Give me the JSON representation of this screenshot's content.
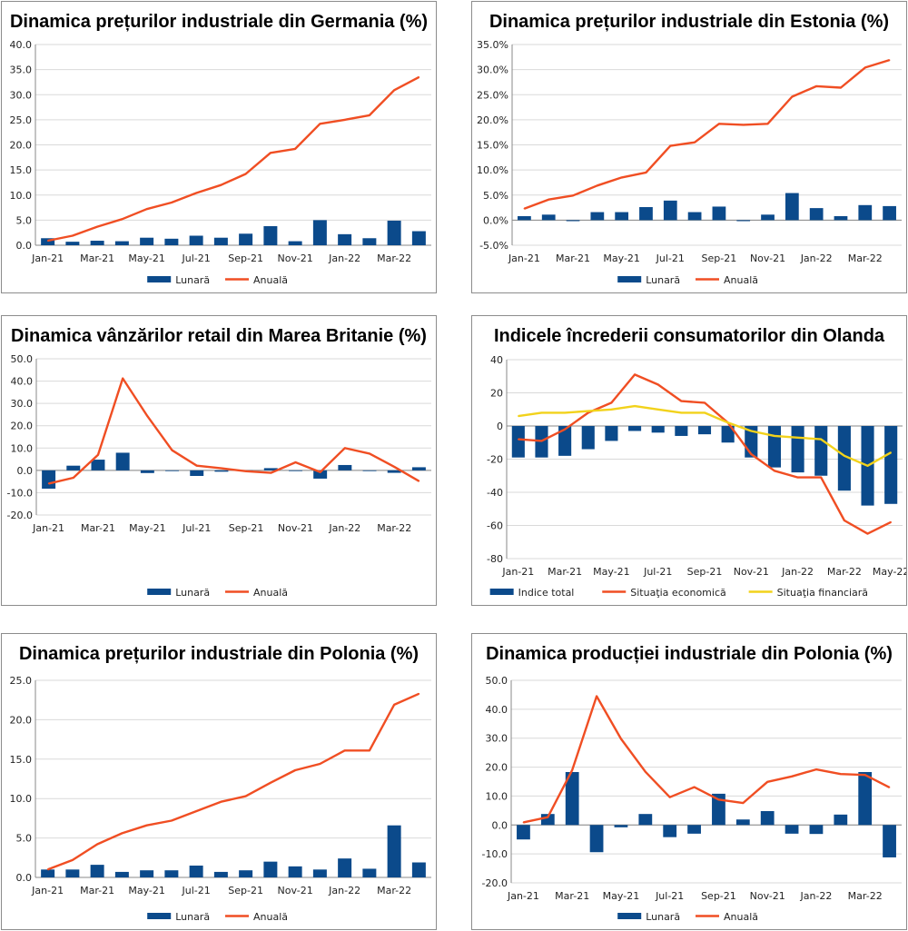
{
  "colors": {
    "bar": "#0b4a8b",
    "line": "#f04e23",
    "line2": "#f2d21b",
    "grid": "#d9d9d9",
    "axis": "#888888"
  },
  "chart_data": [
    {
      "id": "de-ppi",
      "type": "bar+line",
      "title": "Dinamica prețurilor industriale din Germania (%)",
      "x": [
        "Jan-21",
        "Feb-21",
        "Mar-21",
        "Apr-21",
        "May-21",
        "Jun-21",
        "Jul-21",
        "Aug-21",
        "Sep-21",
        "Oct-21",
        "Nov-21",
        "Dec-21",
        "Jan-22",
        "Feb-22",
        "Mar-22",
        "Apr-22"
      ],
      "x_tick_labels": [
        "Jan-21",
        "Mar-21",
        "May-21",
        "Jul-21",
        "Sep-21",
        "Nov-21",
        "Jan-22",
        "Mar-22"
      ],
      "y_ticks": [
        "0.0",
        "5.0",
        "10.0",
        "15.0",
        "20.0",
        "25.0",
        "30.0",
        "35.0",
        "40.0"
      ],
      "ylim": [
        0,
        40
      ],
      "series": [
        {
          "name": "Lunară",
          "kind": "bar",
          "values": [
            1.4,
            0.7,
            0.9,
            0.8,
            1.5,
            1.3,
            1.9,
            1.5,
            2.3,
            3.8,
            0.8,
            5.0,
            2.2,
            1.4,
            4.9,
            2.8
          ]
        },
        {
          "name": "Anuală",
          "kind": "line",
          "values": [
            0.9,
            1.9,
            3.7,
            5.2,
            7.2,
            8.5,
            10.4,
            12.0,
            14.2,
            18.4,
            19.2,
            24.2,
            25.0,
            25.9,
            30.9,
            33.5
          ]
        }
      ],
      "legend": [
        "Lunară",
        "Anuală"
      ]
    },
    {
      "id": "ee-ppi",
      "type": "bar+line",
      "title": "Dinamica prețurilor industriale din Estonia (%)",
      "x": [
        "Jan-21",
        "Feb-21",
        "Mar-21",
        "Apr-21",
        "May-21",
        "Jun-21",
        "Jul-21",
        "Aug-21",
        "Sep-21",
        "Oct-21",
        "Nov-21",
        "Dec-21",
        "Jan-22",
        "Feb-22",
        "Mar-22",
        "Apr-22"
      ],
      "x_tick_labels": [
        "Jan-21",
        "Mar-21",
        "May-21",
        "Jul-21",
        "Sep-21",
        "Nov-21",
        "Jan-22",
        "Mar-22"
      ],
      "y_ticks": [
        "-5.0%",
        "0.0%",
        "5.0%",
        "10.0%",
        "15.0%",
        "20.0%",
        "25.0%",
        "30.0%",
        "35.0%"
      ],
      "ylim": [
        -5,
        35
      ],
      "series": [
        {
          "name": "Lunară",
          "kind": "bar",
          "values": [
            0.8,
            1.1,
            -0.2,
            1.6,
            1.6,
            2.6,
            3.9,
            1.6,
            2.7,
            -0.2,
            1.1,
            5.4,
            2.4,
            0.8,
            3.0,
            2.8
          ]
        },
        {
          "name": "Anuală",
          "kind": "line",
          "values": [
            2.3,
            4.1,
            4.9,
            6.9,
            8.5,
            9.5,
            14.8,
            15.5,
            19.2,
            19.0,
            19.2,
            24.6,
            26.7,
            26.4,
            30.4,
            31.9
          ]
        }
      ],
      "legend": [
        "Lunară",
        "Anuală"
      ]
    },
    {
      "id": "uk-retail",
      "type": "bar+line",
      "title": "Dinamica vânzărilor retail din Marea Britanie (%)",
      "x": [
        "Jan-21",
        "Feb-21",
        "Mar-21",
        "Apr-21",
        "May-21",
        "Jun-21",
        "Jul-21",
        "Aug-21",
        "Sep-21",
        "Oct-21",
        "Nov-21",
        "Dec-21",
        "Jan-22",
        "Feb-22",
        "Mar-22",
        "Apr-22"
      ],
      "x_tick_labels": [
        "Jan-21",
        "Mar-21",
        "May-21",
        "Jul-21",
        "Sep-21",
        "Nov-21",
        "Jan-22",
        "Mar-22"
      ],
      "y_ticks": [
        "-20.0",
        "-10.0",
        "0.0",
        "10.0",
        "20.0",
        "30.0",
        "40.0",
        "50.0"
      ],
      "ylim": [
        -20,
        50
      ],
      "series": [
        {
          "name": "Lunară",
          "kind": "bar",
          "values": [
            -8.2,
            2.1,
            4.8,
            7.9,
            -1.2,
            -0.2,
            -2.5,
            -0.6,
            -0.4,
            1.0,
            -0.2,
            -3.7,
            2.4,
            -0.3,
            -1.1,
            1.4
          ]
        },
        {
          "name": "Anuală",
          "kind": "line",
          "values": [
            -5.9,
            -3.3,
            7.0,
            41.2,
            24.3,
            9.0,
            2.1,
            0.9,
            -0.4,
            -1.1,
            3.6,
            -0.8,
            10.0,
            7.5,
            1.6,
            -4.8
          ]
        }
      ],
      "legend": [
        "Lunară",
        "Anuală"
      ]
    },
    {
      "id": "nl-confidence",
      "type": "bar+line",
      "title": "Indicele încrederii consumatorilor din Olanda",
      "x": [
        "Jan-21",
        "Feb-21",
        "Mar-21",
        "Apr-21",
        "May-21",
        "Jun-21",
        "Jul-21",
        "Aug-21",
        "Sep-21",
        "Oct-21",
        "Nov-21",
        "Dec-21",
        "Jan-22",
        "Feb-22",
        "Mar-22",
        "Apr-22",
        "May-22"
      ],
      "x_tick_labels": [
        "Jan-21",
        "Mar-21",
        "May-21",
        "Jul-21",
        "Sep-21",
        "Nov-21",
        "Jan-22",
        "Mar-22",
        "May-22"
      ],
      "y_ticks": [
        "-80",
        "-60",
        "-40",
        "-20",
        "0",
        "20",
        "40"
      ],
      "ylim": [
        -80,
        40
      ],
      "series": [
        {
          "name": "Indice total",
          "kind": "bar",
          "values": [
            -19,
            -19,
            -18,
            -14,
            -9,
            -3,
            -4,
            -6,
            -5,
            -10,
            -19,
            -25,
            -28,
            -30,
            -39,
            -48,
            -47
          ]
        },
        {
          "name": "Situaţia economică",
          "kind": "line",
          "values": [
            -8,
            -9,
            -2,
            8,
            14,
            31,
            25,
            15,
            14,
            2,
            -17,
            -27,
            -31,
            -31,
            -57,
            -65,
            -58
          ]
        },
        {
          "name": "Situaţia financiară",
          "kind": "line",
          "values": [
            6,
            8,
            8,
            9,
            10,
            12,
            10,
            8,
            8,
            2,
            -3,
            -6,
            -7,
            -8,
            -18,
            -24,
            -16
          ]
        }
      ],
      "legend": [
        "Indice total",
        "Situaţia economică",
        "Situaţia financiară"
      ]
    },
    {
      "id": "pl-ppi",
      "type": "bar+line",
      "title": "Dinamica prețurilor industriale din Polonia (%)",
      "x": [
        "Jan-21",
        "Feb-21",
        "Mar-21",
        "Apr-21",
        "May-21",
        "Jun-21",
        "Jul-21",
        "Aug-21",
        "Sep-21",
        "Oct-21",
        "Nov-21",
        "Dec-21",
        "Jan-22",
        "Feb-22",
        "Mar-22",
        "Apr-22"
      ],
      "x_tick_labels": [
        "Jan-21",
        "Mar-21",
        "May-21",
        "Jul-21",
        "Sep-21",
        "Nov-21",
        "Jan-22",
        "Mar-22"
      ],
      "y_ticks": [
        "0.0",
        "5.0",
        "10.0",
        "15.0",
        "20.0",
        "25.0"
      ],
      "ylim": [
        0,
        25
      ],
      "series": [
        {
          "name": "Lunară",
          "kind": "bar",
          "values": [
            1.0,
            1.0,
            1.6,
            0.7,
            0.9,
            0.9,
            1.5,
            0.7,
            0.9,
            2.0,
            1.4,
            1.0,
            2.4,
            1.1,
            6.6,
            1.9
          ]
        },
        {
          "name": "Anuală",
          "kind": "line",
          "values": [
            1.0,
            2.2,
            4.2,
            5.6,
            6.6,
            7.2,
            8.4,
            9.6,
            10.3,
            12.0,
            13.6,
            14.4,
            16.1,
            16.1,
            21.9,
            23.3
          ]
        }
      ],
      "legend": [
        "Lunară",
        "Anuală"
      ]
    },
    {
      "id": "pl-ip",
      "type": "bar+line",
      "title": "Dinamica producției industriale din Polonia (%)",
      "x": [
        "Jan-21",
        "Feb-21",
        "Mar-21",
        "Apr-21",
        "May-21",
        "Jun-21",
        "Jul-21",
        "Aug-21",
        "Sep-21",
        "Oct-21",
        "Nov-21",
        "Dec-21",
        "Jan-22",
        "Feb-22",
        "Mar-22",
        "Apr-22"
      ],
      "x_tick_labels": [
        "Jan-21",
        "Mar-21",
        "May-21",
        "Jul-21",
        "Sep-21",
        "Nov-21",
        "Jan-22",
        "Mar-22"
      ],
      "y_ticks": [
        "-20.0",
        "-10.0",
        "0.0",
        "10.0",
        "20.0",
        "30.0",
        "40.0",
        "50.0"
      ],
      "ylim": [
        -20,
        50
      ],
      "series": [
        {
          "name": "Lunară",
          "kind": "bar",
          "values": [
            -5.0,
            3.8,
            18.3,
            -9.4,
            -0.8,
            3.8,
            -4.2,
            -3.0,
            10.8,
            1.9,
            4.8,
            -3.0,
            -3.1,
            3.6,
            18.3,
            -11.2
          ]
        },
        {
          "name": "Anuală",
          "kind": "line",
          "values": [
            0.9,
            2.7,
            19.0,
            44.5,
            29.8,
            18.4,
            9.6,
            13.1,
            8.8,
            7.6,
            14.9,
            16.8,
            19.2,
            17.6,
            17.3,
            13.0
          ]
        }
      ],
      "legend": [
        "Lunară",
        "Anuală"
      ]
    }
  ]
}
